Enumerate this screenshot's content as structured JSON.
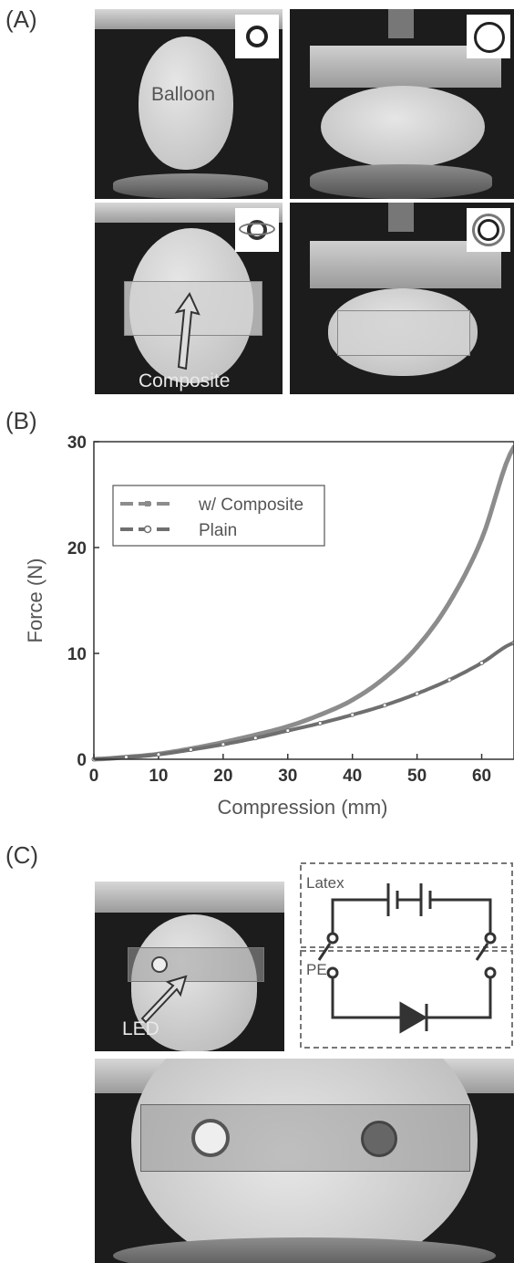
{
  "panels": {
    "a": "(A)",
    "b": "(B)",
    "c": "(C)"
  },
  "panel_a": {
    "balloon_label": "Balloon",
    "composite_label": "Composite"
  },
  "panel_c": {
    "led_label": "LED",
    "circuit": {
      "latex_label": "Latex",
      "pe_label": "PE"
    }
  },
  "chart_data": {
    "type": "line",
    "xlabel": "Compression (mm)",
    "ylabel": "Force (N)",
    "xlim": [
      0,
      65
    ],
    "ylim": [
      0,
      30
    ],
    "xticks": [
      "0",
      "10",
      "20",
      "30",
      "40",
      "50",
      "60"
    ],
    "yticks": [
      "0",
      "10",
      "20",
      "30"
    ],
    "legend_position": "top-left",
    "grid": false,
    "series": [
      {
        "name": "w/ Composite",
        "x": [
          0,
          5,
          10,
          15,
          20,
          25,
          30,
          35,
          40,
          45,
          50,
          55,
          60,
          65
        ],
        "y": [
          0,
          0.2,
          0.5,
          1.0,
          1.6,
          2.3,
          3.1,
          4.2,
          5.6,
          7.7,
          10.6,
          14.8,
          20.8,
          29.5
        ]
      },
      {
        "name": "Plain",
        "x": [
          0,
          5,
          10,
          15,
          20,
          25,
          30,
          35,
          40,
          45,
          50,
          55,
          60,
          65
        ],
        "y": [
          0,
          0.2,
          0.45,
          0.9,
          1.4,
          2.0,
          2.7,
          3.4,
          4.2,
          5.1,
          6.2,
          7.5,
          9.1,
          11.0
        ]
      }
    ],
    "colors": {
      "composite": "#8c8c8c",
      "plain": "#6f6f6f"
    }
  }
}
